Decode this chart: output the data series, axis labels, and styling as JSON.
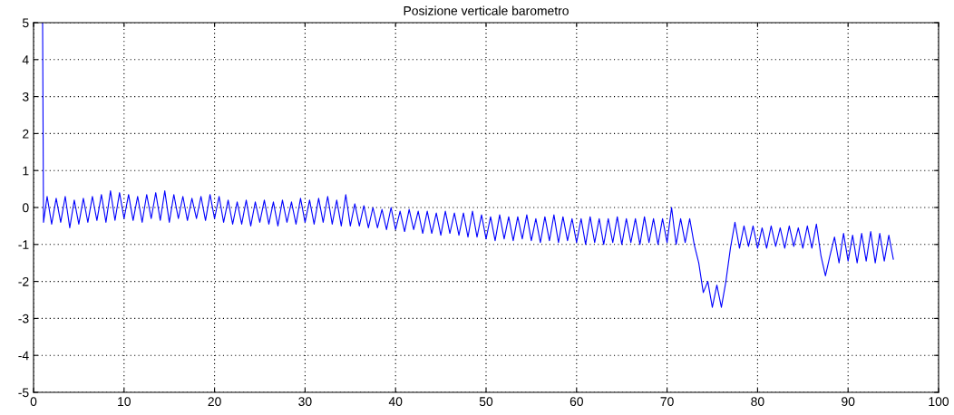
{
  "chart_data": {
    "type": "line",
    "title": "Posizione verticale barometro",
    "x": [
      1.0,
      1.1,
      1.5,
      2,
      2.5,
      3,
      3.5,
      4,
      4.5,
      5,
      5.5,
      6,
      6.5,
      7,
      7.5,
      8,
      8.5,
      9,
      9.5,
      10,
      10.5,
      11,
      11.5,
      12,
      12.5,
      13,
      13.5,
      14,
      14.5,
      15,
      15.5,
      16,
      16.5,
      17,
      17.5,
      18,
      18.5,
      19,
      19.5,
      20,
      20.5,
      21,
      21.5,
      22,
      22.5,
      23,
      23.5,
      24,
      24.5,
      25,
      25.5,
      26,
      26.5,
      27,
      27.5,
      28,
      28.5,
      29,
      29.5,
      30,
      30.5,
      31,
      31.5,
      32,
      32.5,
      33,
      33.5,
      34,
      34.5,
      35,
      35.5,
      36,
      36.5,
      37,
      37.5,
      38,
      38.5,
      39,
      39.5,
      40,
      40.5,
      41,
      41.5,
      42,
      42.5,
      43,
      43.5,
      44,
      44.5,
      45,
      45.5,
      46,
      46.5,
      47,
      47.5,
      48,
      48.5,
      49,
      49.5,
      50,
      50.5,
      51,
      51.5,
      52,
      52.5,
      53,
      53.5,
      54,
      54.5,
      55,
      55.5,
      56,
      56.5,
      57,
      57.5,
      58,
      58.5,
      59,
      59.5,
      60,
      60.5,
      61,
      61.5,
      62,
      62.5,
      63,
      63.5,
      64,
      64.5,
      65,
      65.5,
      66,
      66.5,
      67,
      67.5,
      68,
      68.5,
      69,
      69.5,
      70,
      70.5,
      71,
      71.5,
      72,
      72.5,
      73,
      73.5,
      74,
      74.5,
      75,
      75.5,
      76,
      76.5,
      77,
      77.5,
      78,
      78.5,
      79,
      79.5,
      80,
      80.5,
      81,
      81.5,
      82,
      82.5,
      83,
      83.5,
      84,
      84.5,
      85,
      85.5,
      86,
      86.5,
      87,
      87.5,
      88,
      88.5,
      89,
      89.5,
      90,
      90.5,
      91,
      91.5,
      92,
      92.5,
      93,
      93.5,
      94,
      94.5,
      95
    ],
    "series": [
      {
        "color": "#0000ff",
        "values": [
          5,
          -0.4,
          0.3,
          -0.45,
          0.25,
          -0.4,
          0.3,
          -0.55,
          0.2,
          -0.45,
          0.25,
          -0.4,
          0.3,
          -0.35,
          0.35,
          -0.4,
          0.45,
          -0.35,
          0.4,
          -0.3,
          0.35,
          -0.35,
          0.3,
          -0.4,
          0.35,
          -0.3,
          0.4,
          -0.35,
          0.45,
          -0.4,
          0.35,
          -0.3,
          0.3,
          -0.35,
          0.25,
          -0.3,
          0.3,
          -0.35,
          0.35,
          -0.3,
          0.3,
          -0.4,
          0.2,
          -0.45,
          0.15,
          -0.45,
          0.2,
          -0.5,
          0.15,
          -0.4,
          0.2,
          -0.45,
          0.15,
          -0.5,
          0.2,
          -0.4,
          0.15,
          -0.45,
          0.25,
          -0.4,
          0.2,
          -0.45,
          0.25,
          -0.4,
          0.3,
          -0.45,
          0.2,
          -0.5,
          0.35,
          -0.5,
          0.1,
          -0.5,
          0.05,
          -0.55,
          0.0,
          -0.55,
          -0.05,
          -0.6,
          0.0,
          -0.6,
          -0.1,
          -0.65,
          -0.05,
          -0.6,
          -0.1,
          -0.7,
          -0.1,
          -0.7,
          -0.15,
          -0.75,
          -0.1,
          -0.7,
          -0.15,
          -0.75,
          -0.15,
          -0.8,
          -0.1,
          -0.8,
          -0.2,
          -0.85,
          -0.25,
          -0.9,
          -0.2,
          -0.85,
          -0.25,
          -0.9,
          -0.25,
          -0.85,
          -0.2,
          -0.9,
          -0.3,
          -0.95,
          -0.25,
          -0.9,
          -0.2,
          -0.95,
          -0.25,
          -0.9,
          -0.3,
          -0.95,
          -0.3,
          -1.0,
          -0.25,
          -0.95,
          -0.3,
          -1.0,
          -0.3,
          -0.95,
          -0.25,
          -1.0,
          -0.3,
          -0.95,
          -0.3,
          -1.0,
          -0.25,
          -0.95,
          -0.3,
          -1.0,
          -0.3,
          -0.95,
          0.0,
          -1.0,
          -0.3,
          -0.95,
          -0.3,
          -1.0,
          -1.5,
          -2.3,
          -2.0,
          -2.7,
          -2.1,
          -2.7,
          -2.0,
          -1.1,
          -0.4,
          -1.1,
          -0.5,
          -1.05,
          -0.5,
          -1.1,
          -0.55,
          -1.1,
          -0.5,
          -1.05,
          -0.55,
          -1.1,
          -0.5,
          -1.05,
          -0.55,
          -1.1,
          -0.5,
          -1.1,
          -0.45,
          -1.3,
          -1.85,
          -1.3,
          -0.8,
          -1.5,
          -0.7,
          -1.45,
          -0.75,
          -1.5,
          -0.7,
          -1.45,
          -0.65,
          -1.5,
          -0.7,
          -1.45,
          -0.75,
          -1.4
        ]
      }
    ],
    "xlim": [
      0,
      100
    ],
    "ylim": [
      -5,
      5
    ],
    "xticks": [
      0,
      10,
      20,
      30,
      40,
      50,
      60,
      70,
      80,
      90,
      100
    ],
    "yticks": [
      -5,
      -4,
      -3,
      -2,
      -1,
      0,
      1,
      2,
      3,
      4,
      5
    ],
    "grid": true,
    "line_style": "solid",
    "marker": "none"
  }
}
